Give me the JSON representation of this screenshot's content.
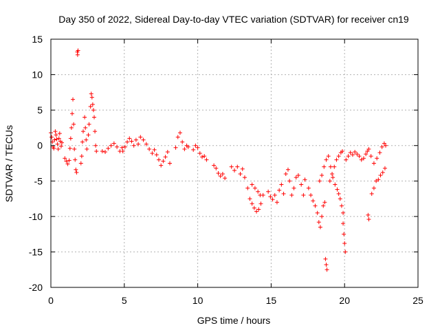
{
  "chart_data": {
    "type": "scatter",
    "title": "Day 350 of 2022, Sidereal Day-to-day VTEC variation (SDTVAR) for receiver cn19",
    "xlabel": "GPS time / hours",
    "ylabel": "SDTVAR / TECUs",
    "xlim": [
      0,
      25
    ],
    "ylim": [
      -20,
      15
    ],
    "xticks": [
      0,
      5,
      10,
      15,
      20,
      25
    ],
    "yticks": [
      -20,
      -15,
      -10,
      -5,
      0,
      5,
      10,
      15
    ],
    "xtick_labels": [
      "0",
      "5",
      "10",
      "15",
      "20",
      "25"
    ],
    "ytick_labels": [
      "-20",
      "-15",
      "-10",
      "-5",
      "0",
      "5",
      "10",
      "15"
    ],
    "grid": true,
    "marker": "+",
    "color": "#ff0000",
    "series": [
      {
        "name": "SDTVAR",
        "points": [
          [
            0.0,
            1.8
          ],
          [
            0.05,
            1.2
          ],
          [
            0.1,
            0.5
          ],
          [
            0.15,
            -0.2
          ],
          [
            0.2,
            -0.4
          ],
          [
            0.25,
            0.8
          ],
          [
            0.3,
            2.0
          ],
          [
            0.35,
            1.5
          ],
          [
            0.4,
            0.9
          ],
          [
            0.45,
            0.2
          ],
          [
            0.5,
            -0.5
          ],
          [
            0.55,
            1.0
          ],
          [
            0.6,
            1.7
          ],
          [
            0.65,
            0.6
          ],
          [
            0.7,
            -0.1
          ],
          [
            0.75,
            0.4
          ],
          [
            0.95,
            -1.8
          ],
          [
            1.05,
            -2.2
          ],
          [
            1.15,
            -2.6
          ],
          [
            1.25,
            -2.1
          ],
          [
            1.3,
            -0.4
          ],
          [
            1.35,
            1.0
          ],
          [
            1.4,
            2.5
          ],
          [
            1.45,
            4.5
          ],
          [
            1.5,
            6.5
          ],
          [
            1.55,
            3.0
          ],
          [
            1.6,
            -0.5
          ],
          [
            1.65,
            -2.0
          ],
          [
            1.7,
            -3.4
          ],
          [
            1.75,
            -3.8
          ],
          [
            1.8,
            13.2
          ],
          [
            1.82,
            12.8
          ],
          [
            1.85,
            13.4
          ],
          [
            2.05,
            -2.5
          ],
          [
            2.1,
            -1.5
          ],
          [
            2.15,
            0.5
          ],
          [
            2.2,
            2.0
          ],
          [
            2.3,
            4.0
          ],
          [
            2.35,
            2.5
          ],
          [
            2.4,
            0.8
          ],
          [
            2.45,
            -0.5
          ],
          [
            2.55,
            1.5
          ],
          [
            2.6,
            3.0
          ],
          [
            2.7,
            5.5
          ],
          [
            2.75,
            7.3
          ],
          [
            2.8,
            6.8
          ],
          [
            2.85,
            5.8
          ],
          [
            2.9,
            5.0
          ],
          [
            2.95,
            4.0
          ],
          [
            3.0,
            2.0
          ],
          [
            3.05,
            0.0
          ],
          [
            3.1,
            -0.8
          ],
          [
            3.5,
            -0.8
          ],
          [
            3.7,
            -0.9
          ],
          [
            3.9,
            -0.4
          ],
          [
            4.1,
            0.0
          ],
          [
            4.3,
            0.3
          ],
          [
            4.5,
            -0.2
          ],
          [
            4.7,
            -0.8
          ],
          [
            4.85,
            -0.3
          ],
          [
            4.9,
            -0.8
          ],
          [
            5.05,
            -0.2
          ],
          [
            5.2,
            0.5
          ],
          [
            5.35,
            1.0
          ],
          [
            5.5,
            0.6
          ],
          [
            5.65,
            0.0
          ],
          [
            5.8,
            0.8
          ],
          [
            5.95,
            0.2
          ],
          [
            6.1,
            1.2
          ],
          [
            6.3,
            0.8
          ],
          [
            6.5,
            0.2
          ],
          [
            6.7,
            -0.5
          ],
          [
            6.9,
            -1.1
          ],
          [
            7.05,
            -0.6
          ],
          [
            7.2,
            -1.3
          ],
          [
            7.35,
            -2.0
          ],
          [
            7.5,
            -2.8
          ],
          [
            7.65,
            -2.2
          ],
          [
            7.8,
            -1.6
          ],
          [
            7.95,
            -0.9
          ],
          [
            8.1,
            -2.5
          ],
          [
            8.5,
            -0.3
          ],
          [
            8.65,
            1.2
          ],
          [
            8.8,
            1.8
          ],
          [
            8.95,
            0.5
          ],
          [
            9.1,
            -0.5
          ],
          [
            9.25,
            0.0
          ],
          [
            9.35,
            -0.2
          ],
          [
            9.7,
            -0.6
          ],
          [
            9.85,
            0.0
          ],
          [
            10.0,
            -0.3
          ],
          [
            10.15,
            -1.1
          ],
          [
            10.3,
            -1.6
          ],
          [
            10.45,
            -1.5
          ],
          [
            10.6,
            -2.0
          ],
          [
            11.1,
            -2.8
          ],
          [
            11.25,
            -3.2
          ],
          [
            11.4,
            -3.9
          ],
          [
            11.55,
            -4.3
          ],
          [
            11.7,
            -4.0
          ],
          [
            11.85,
            -4.6
          ],
          [
            12.3,
            -3.0
          ],
          [
            12.5,
            -3.5
          ],
          [
            12.7,
            -3.0
          ],
          [
            12.9,
            -4.0
          ],
          [
            13.05,
            -3.3
          ],
          [
            13.2,
            -4.5
          ],
          [
            13.4,
            -6.0
          ],
          [
            13.55,
            -7.5
          ],
          [
            13.7,
            -8.2
          ],
          [
            13.85,
            -8.8
          ],
          [
            14.0,
            -9.3
          ],
          [
            14.15,
            -9.0
          ],
          [
            14.3,
            -8.2
          ],
          [
            14.45,
            -7.0
          ],
          [
            13.7,
            -5.5
          ],
          [
            13.9,
            -6.0
          ],
          [
            14.1,
            -6.5
          ],
          [
            14.25,
            -7.0
          ],
          [
            14.8,
            -6.5
          ],
          [
            14.95,
            -7.2
          ],
          [
            15.1,
            -7.6
          ],
          [
            15.25,
            -7.0
          ],
          [
            15.4,
            -8.0
          ],
          [
            15.55,
            -6.3
          ],
          [
            15.7,
            -5.5
          ],
          [
            15.85,
            -6.8
          ],
          [
            16.0,
            -4.0
          ],
          [
            16.15,
            -3.4
          ],
          [
            16.25,
            -5.0
          ],
          [
            16.4,
            -7.0
          ],
          [
            16.55,
            -6.0
          ],
          [
            16.7,
            -4.5
          ],
          [
            16.85,
            -4.2
          ],
          [
            17.05,
            -5.5
          ],
          [
            17.2,
            -7.0
          ],
          [
            17.3,
            -4.8
          ],
          [
            17.55,
            -6.0
          ],
          [
            17.7,
            -7.0
          ],
          [
            17.85,
            -7.8
          ],
          [
            18.0,
            -8.5
          ],
          [
            18.15,
            -9.5
          ],
          [
            18.25,
            -10.8
          ],
          [
            18.35,
            -11.5
          ],
          [
            18.45,
            -10.0
          ],
          [
            18.55,
            -8.5
          ],
          [
            18.65,
            -8.0
          ],
          [
            18.3,
            -5.0
          ],
          [
            18.45,
            -4.2
          ],
          [
            18.6,
            -3.0
          ],
          [
            18.75,
            -2.0
          ],
          [
            18.9,
            -1.5
          ],
          [
            19.05,
            -3.0
          ],
          [
            19.2,
            -4.5
          ],
          [
            19.35,
            -5.5
          ],
          [
            19.5,
            -6.2
          ],
          [
            19.6,
            -6.8
          ],
          [
            19.7,
            -7.5
          ],
          [
            19.8,
            -8.5
          ],
          [
            19.9,
            -9.5
          ],
          [
            18.7,
            -16.0
          ],
          [
            18.75,
            -16.8
          ],
          [
            18.8,
            -17.5
          ],
          [
            19.0,
            -5.0
          ],
          [
            19.15,
            -4.0
          ],
          [
            19.3,
            -3.0
          ],
          [
            19.45,
            -2.0
          ],
          [
            19.6,
            -1.5
          ],
          [
            19.75,
            -1.0
          ],
          [
            19.85,
            -0.8
          ],
          [
            19.9,
            -11.0
          ],
          [
            19.95,
            -12.5
          ],
          [
            20.0,
            -13.8
          ],
          [
            20.05,
            -15.0
          ],
          [
            20.1,
            -2.0
          ],
          [
            20.25,
            -1.5
          ],
          [
            20.4,
            -1.0
          ],
          [
            20.55,
            -1.3
          ],
          [
            20.7,
            -0.9
          ],
          [
            20.85,
            -1.2
          ],
          [
            21.0,
            -1.5
          ],
          [
            21.15,
            -2.0
          ],
          [
            21.3,
            -1.8
          ],
          [
            21.45,
            -1.2
          ],
          [
            21.55,
            -0.8
          ],
          [
            21.65,
            -0.5
          ],
          [
            21.6,
            -9.8
          ],
          [
            21.65,
            -10.4
          ],
          [
            21.85,
            -6.8
          ],
          [
            22.0,
            -6.0
          ],
          [
            22.15,
            -5.0
          ],
          [
            22.3,
            -4.8
          ],
          [
            22.45,
            -4.2
          ],
          [
            22.6,
            -3.8
          ],
          [
            22.75,
            -3.2
          ],
          [
            21.8,
            -1.5
          ],
          [
            22.0,
            -2.5
          ],
          [
            22.2,
            -1.8
          ],
          [
            22.4,
            -1.0
          ],
          [
            22.55,
            -0.2
          ],
          [
            22.7,
            0.3
          ],
          [
            22.8,
            0.0
          ]
        ]
      }
    ]
  }
}
